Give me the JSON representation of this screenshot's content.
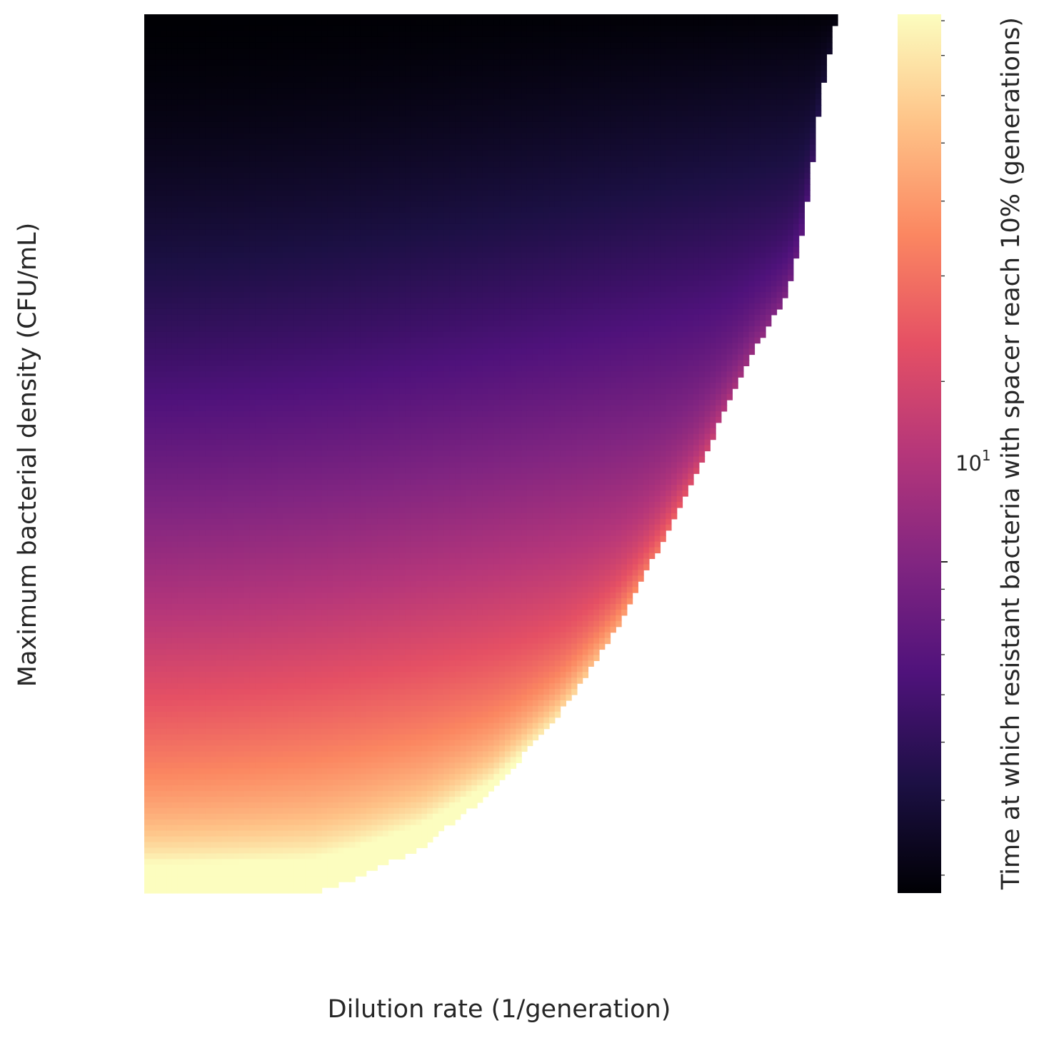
{
  "chart_data": {
    "type": "heatmap",
    "title": "",
    "xlabel": "Dilution rate (1/generation)",
    "ylabel": "Maximum bacterial density (CFU/mL)",
    "x_tick_labels": [],
    "y_tick_labels": [],
    "grid": false,
    "colormap": "magma",
    "undefined_region_color": "#ffffff",
    "colorbar": {
      "label": "Time at which resistant bacteria with spacer reach 10% (generations)",
      "scale": "log",
      "range": [
        2.8,
        82
      ],
      "major_ticks": [
        10
      ],
      "major_tick_labels": [
        "10"
      ],
      "major_tick_label_exponent": "1",
      "minor_ticks": [
        3,
        4,
        5,
        6,
        7,
        8,
        9,
        20,
        30,
        40,
        50,
        60,
        70,
        80
      ]
    },
    "grid_size": {
      "cols": 125,
      "rows": 155
    },
    "value_field": {
      "description_rows": "rows run from top (high density) to bottom (low density); columns left (low dilution) to right (high dilution)",
      "min": 2.8,
      "max": 82
    },
    "defined_region_boundary": [
      [
        0.0,
        1.0
      ],
      [
        0.245,
        1.0
      ],
      [
        0.3,
        0.985
      ],
      [
        0.4,
        0.948
      ],
      [
        0.5,
        0.885
      ],
      [
        0.6,
        0.795
      ],
      [
        0.68,
        0.7
      ],
      [
        0.74,
        0.61
      ],
      [
        0.8,
        0.515
      ],
      [
        0.85,
        0.43
      ],
      [
        0.88,
        0.38
      ],
      [
        0.915,
        0.335
      ],
      [
        0.93,
        0.31
      ],
      [
        0.945,
        0.265
      ],
      [
        0.955,
        0.22
      ],
      [
        0.965,
        0.16
      ],
      [
        0.975,
        0.1
      ],
      [
        0.995,
        0.015
      ],
      [
        1.0,
        0.0
      ]
    ]
  }
}
